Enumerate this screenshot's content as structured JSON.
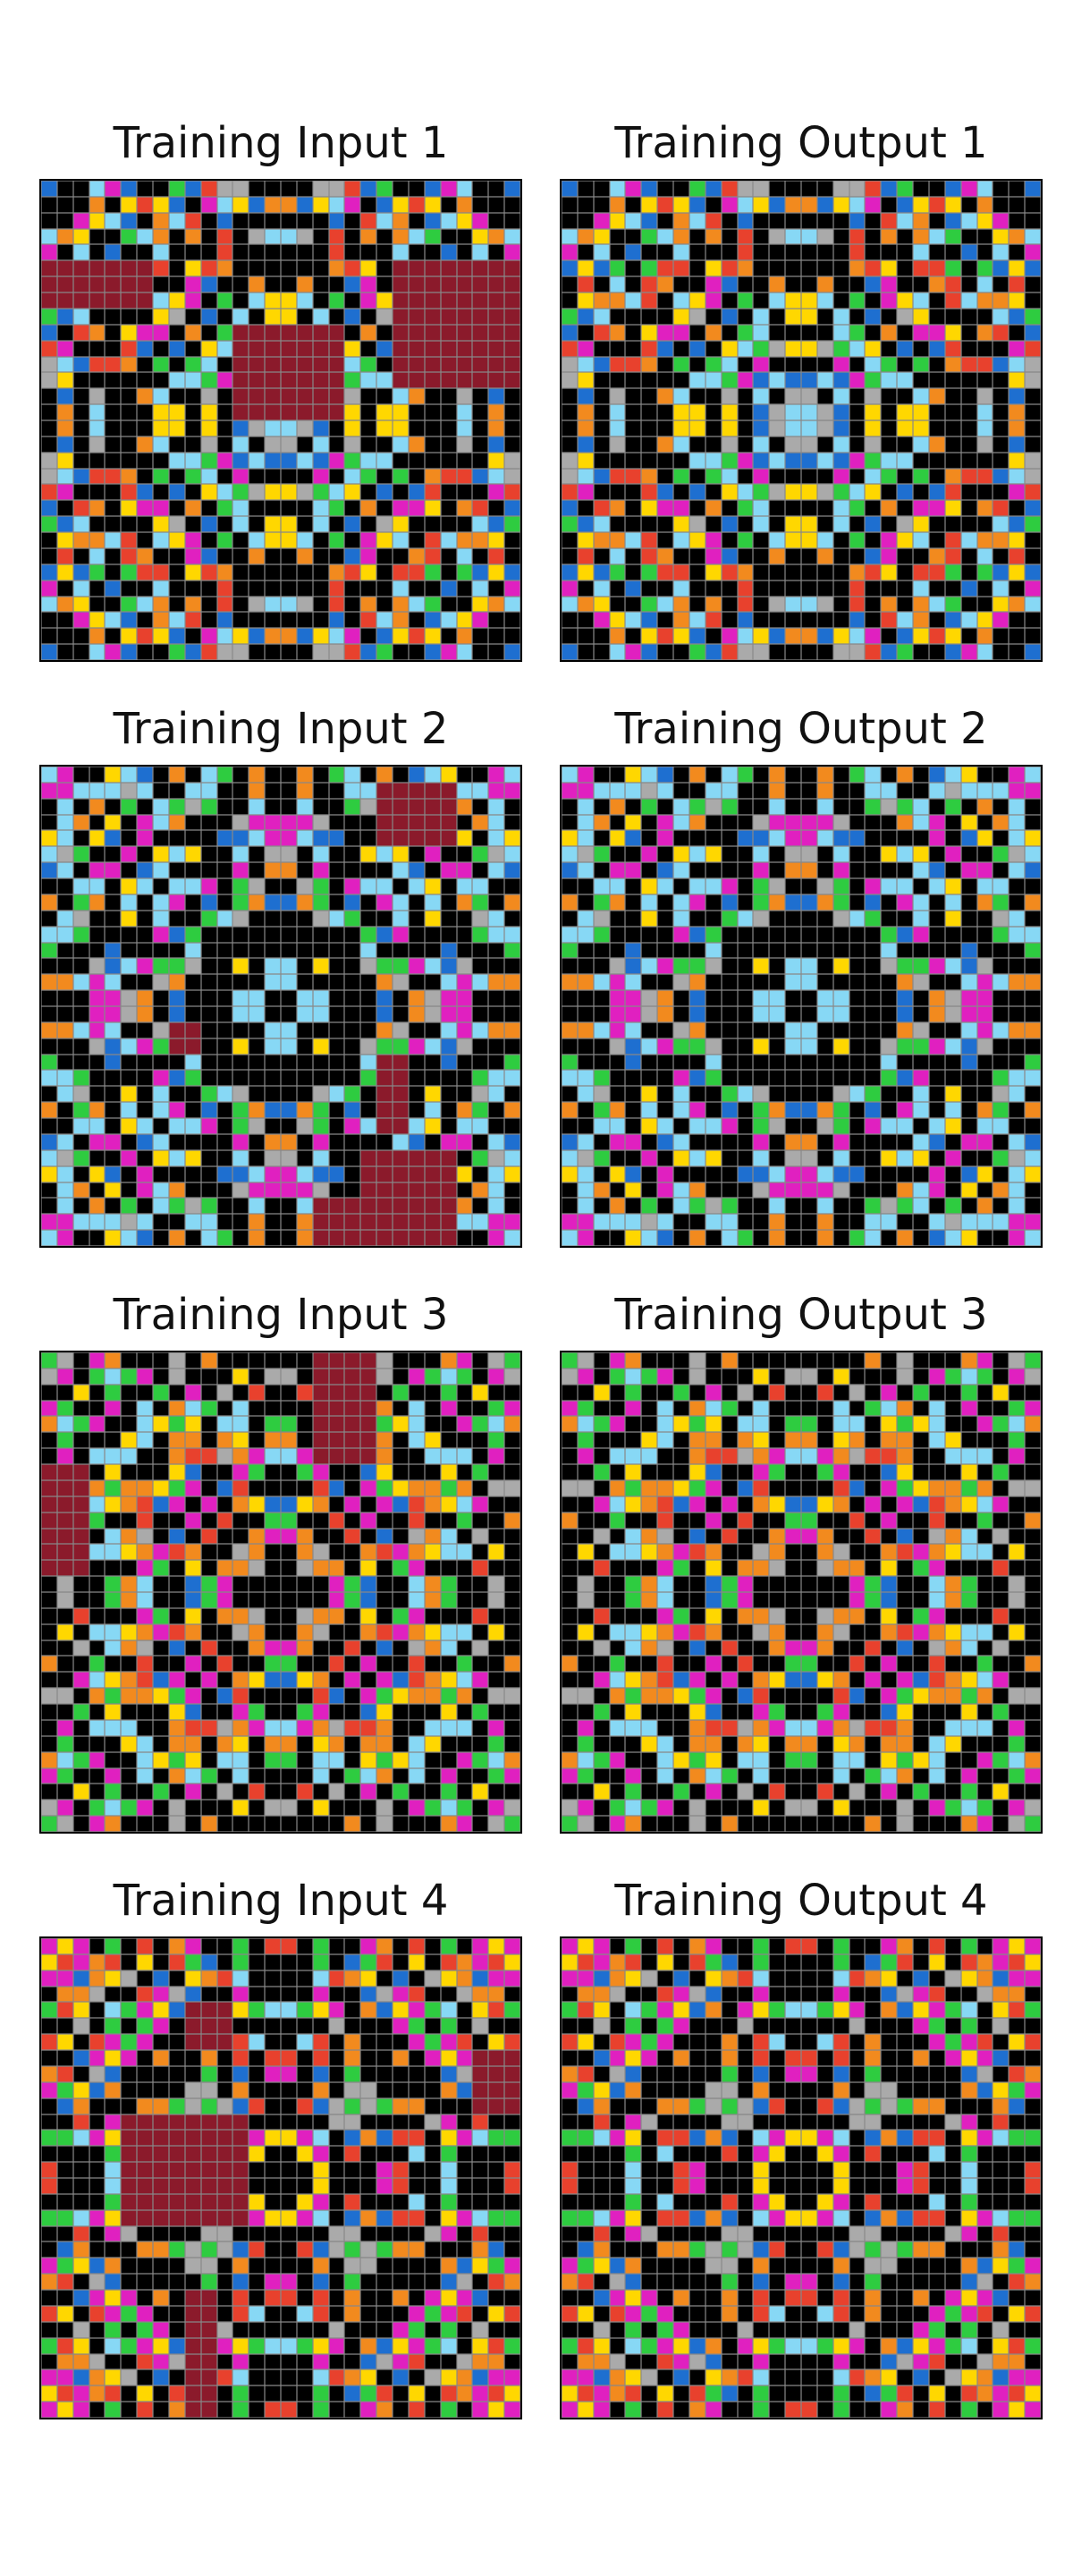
{
  "palette": {
    "0": "#000000",
    "1": "#1E6FD0",
    "2": "#E8412D",
    "3": "#2ECC40",
    "4": "#FFD700",
    "5": "#AAAAAA",
    "6": "#E020C0",
    "7": "#F28A1E",
    "8": "#87D8F5",
    "9": "#8B1A2B"
  },
  "panels": [
    {
      "title": "Training Input 1"
    },
    {
      "title": "Training Output 1"
    },
    {
      "title": "Training Input 2"
    },
    {
      "title": "Training Output 2"
    },
    {
      "title": "Training Input 3"
    },
    {
      "title": "Training Output 3"
    },
    {
      "title": "Training Input 4"
    },
    {
      "title": "Training Output 4"
    }
  ]
}
